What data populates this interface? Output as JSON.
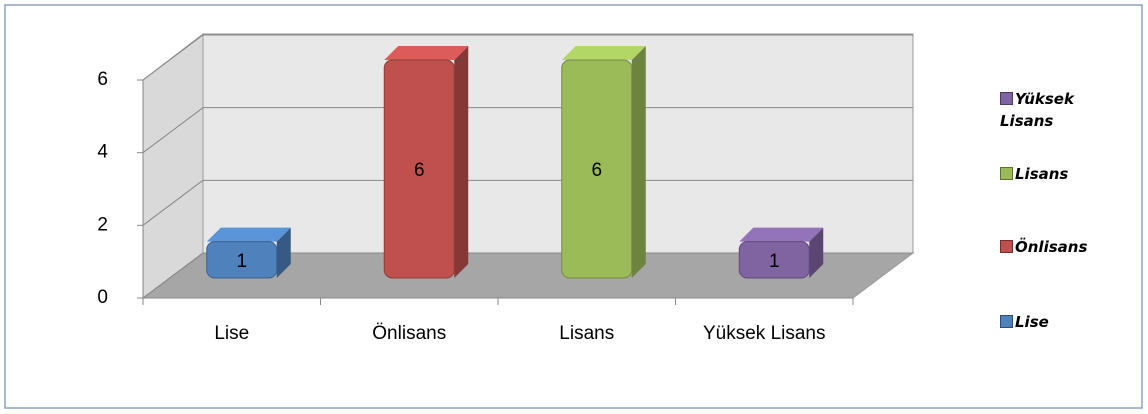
{
  "chart_data": {
    "type": "bar",
    "categories": [
      "Lise",
      "Önlisans",
      "Lisans",
      "Yüksek Lisans"
    ],
    "values": [
      1,
      6,
      6,
      1
    ],
    "colors": [
      "#4f81bd",
      "#c0504d",
      "#9bbb59",
      "#8064a2"
    ],
    "ylim": [
      0,
      6
    ],
    "yticks": [
      0,
      2,
      4,
      6
    ],
    "grid": true,
    "legend": "right"
  }
}
